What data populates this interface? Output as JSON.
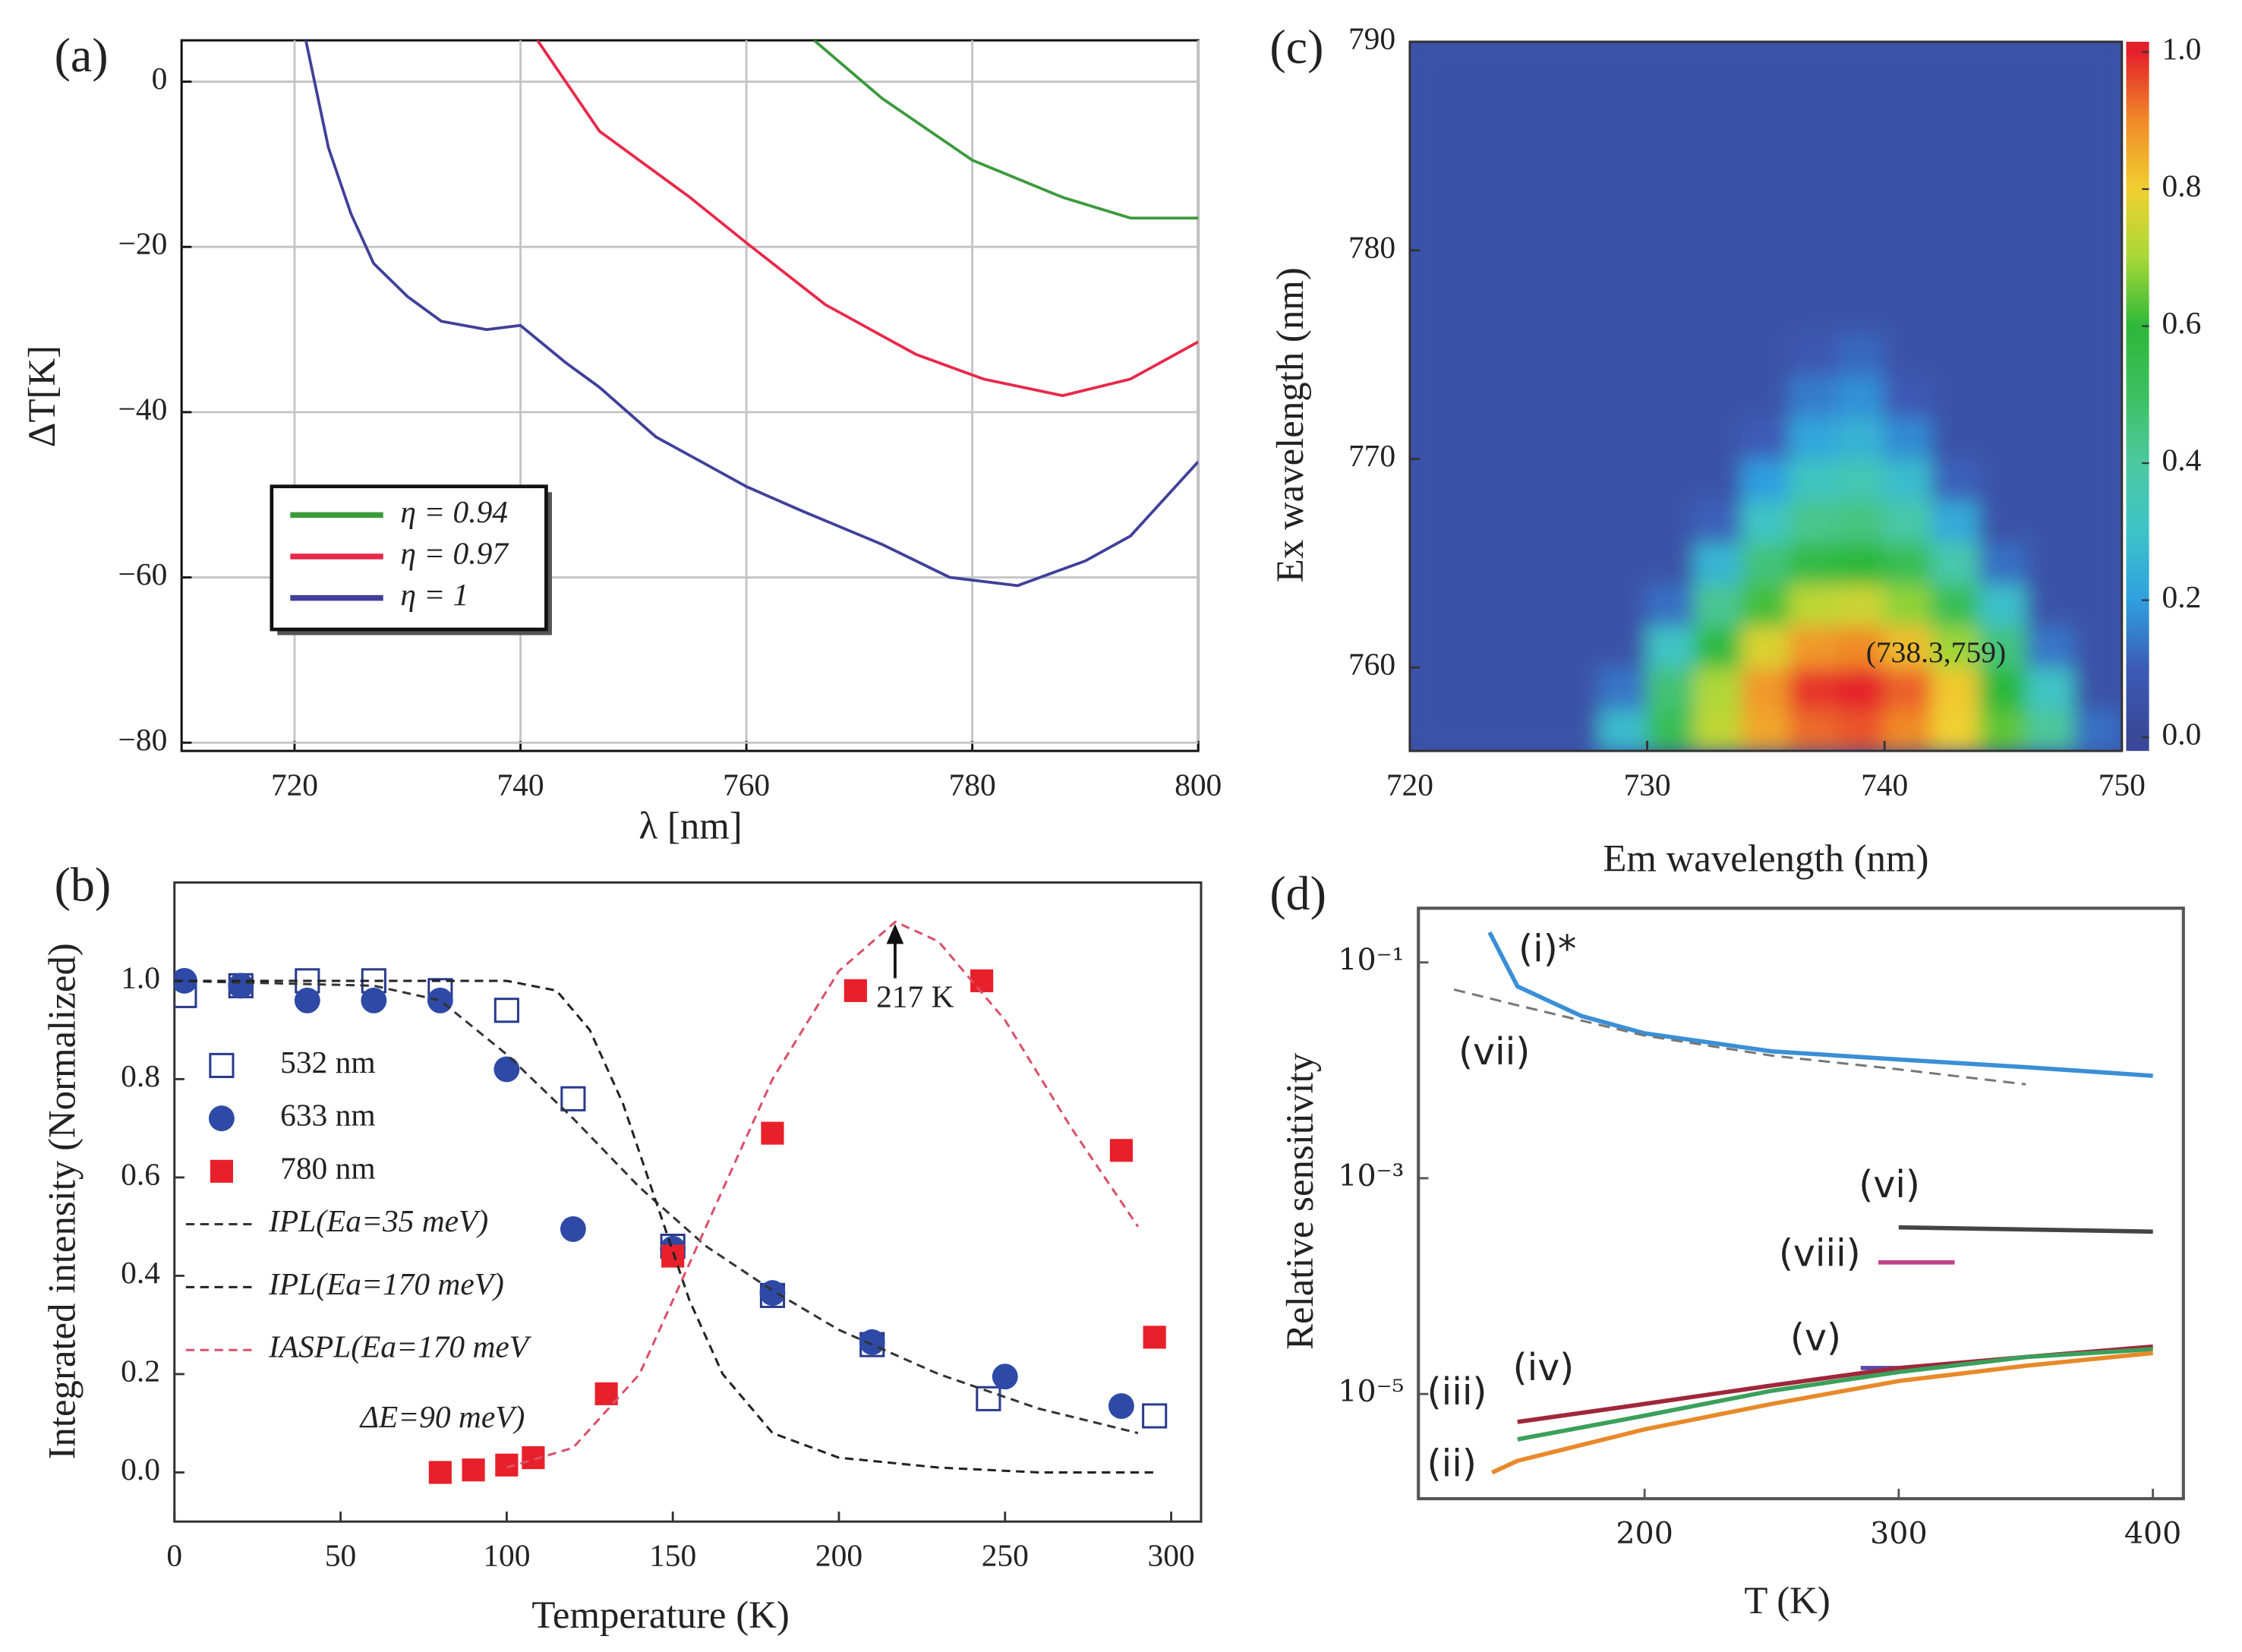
{
  "chart_data": [
    {
      "type": "line",
      "panel_label": "(a)",
      "xlabel": "λ [nm]",
      "ylabel": "ΔT[K]",
      "xlim": [
        710,
        800
      ],
      "ylim": [
        -81,
        5
      ],
      "xticks": [
        720,
        740,
        760,
        780,
        800
      ],
      "yticks": [
        {
          "value": -80,
          "label": "−80"
        },
        {
          "value": -60,
          "label": "−60"
        },
        {
          "value": -40,
          "label": "−40"
        },
        {
          "value": -20,
          "label": "−20"
        },
        0
      ],
      "grid": true,
      "legend": "left",
      "series": [
        {
          "name": "η = 0.94",
          "color": "#3c9a3c",
          "x": [
            766,
            772,
            780,
            788,
            794,
            800
          ],
          "values": [
            5,
            -2,
            -9.5,
            -14,
            -16.5,
            -16.5
          ]
        },
        {
          "name": "η = 0.97",
          "color": "#e8294a",
          "x": [
            741.5,
            747,
            755,
            760,
            767,
            775,
            781,
            788,
            794,
            800
          ],
          "values": [
            5,
            -6,
            -14,
            -19.5,
            -27,
            -33,
            -36,
            -38,
            -36,
            -31.5
          ]
        },
        {
          "name": "η = 1",
          "color": "#40409a",
          "x": [
            721,
            723,
            725,
            727,
            730,
            733,
            737,
            740,
            744,
            747,
            752,
            756,
            760,
            765,
            772,
            778,
            784,
            790,
            794,
            800
          ],
          "values": [
            5,
            -8,
            -16,
            -22,
            -26,
            -29,
            -30,
            -29.5,
            -34,
            -37,
            -43,
            -46,
            -49,
            -52,
            -56,
            -60,
            -61,
            -58,
            -55,
            -46
          ]
        }
      ]
    },
    {
      "type": "scatter",
      "panel_label": "(b)",
      "xlabel": "Temperature (K)",
      "ylabel": "Integrated intensity (Normalized)",
      "xlim": [
        0,
        309
      ],
      "ylim": [
        -0.1,
        1.2
      ],
      "xticks": [
        0,
        50,
        100,
        150,
        200,
        250,
        300
      ],
      "yticks": [
        {
          "value": 0,
          "label": "0.0"
        },
        {
          "value": 0.2,
          "label": "0.2"
        },
        {
          "value": 0.4,
          "label": "0.4"
        },
        {
          "value": 0.6,
          "label": "0.6"
        },
        {
          "value": 0.8,
          "label": "0.8"
        },
        {
          "value": 1,
          "label": "1.0"
        }
      ],
      "grid": false,
      "legend": "left",
      "annotations": [
        "217 K",
        "ΔE=90 meV)"
      ],
      "series": [
        {
          "name": "532 nm",
          "marker": "square-open",
          "color": "#2a3a8c",
          "x": [
            3,
            20,
            40,
            60,
            80,
            100,
            120,
            150,
            180,
            210,
            245,
            295
          ],
          "values": [
            0.97,
            0.99,
            1.0,
            1.0,
            0.98,
            0.94,
            0.76,
            0.46,
            0.36,
            0.26,
            0.15,
            0.115
          ]
        },
        {
          "name": "633 nm",
          "marker": "circle",
          "color": "#2e4aa6",
          "x": [
            3,
            20,
            40,
            60,
            80,
            100,
            120,
            150,
            180,
            210,
            250,
            285
          ],
          "values": [
            1.0,
            0.99,
            0.96,
            0.96,
            0.96,
            0.82,
            0.495,
            0.455,
            0.365,
            0.265,
            0.195,
            0.135
          ]
        },
        {
          "name": "780 nm",
          "marker": "square",
          "color": "#e8202a",
          "x": [
            80,
            90,
            100,
            108,
            130,
            150,
            180,
            205,
            243,
            285,
            295
          ],
          "values": [
            0.0,
            0.005,
            0.015,
            0.03,
            0.16,
            0.44,
            0.69,
            0.98,
            1.0,
            0.655,
            0.275
          ]
        },
        {
          "name": "IPL(Ea=35 meV)",
          "dash": true,
          "color": "#333333",
          "x": [
            0,
            60,
            80,
            100,
            120,
            140,
            160,
            180,
            200,
            230,
            260,
            290
          ],
          "values": [
            1.0,
            0.99,
            0.96,
            0.85,
            0.72,
            0.58,
            0.46,
            0.37,
            0.29,
            0.2,
            0.13,
            0.08
          ]
        },
        {
          "name": "IPL(Ea=170 meV)",
          "dash": true,
          "color": "#222222",
          "x": [
            0,
            100,
            115,
            125,
            135,
            145,
            155,
            165,
            180,
            200,
            230,
            260,
            295
          ],
          "values": [
            1.0,
            1.0,
            0.98,
            0.9,
            0.75,
            0.55,
            0.35,
            0.2,
            0.08,
            0.03,
            0.01,
            0.0,
            0.0
          ]
        },
        {
          "name": "IASPL(Ea=170 meV",
          "dash": true,
          "color": "#d8506a",
          "x": [
            100,
            120,
            140,
            160,
            180,
            200,
            217,
            230,
            250,
            270,
            290
          ],
          "values": [
            0.01,
            0.05,
            0.2,
            0.5,
            0.8,
            1.02,
            1.12,
            1.08,
            0.92,
            0.7,
            0.5
          ]
        }
      ]
    },
    {
      "type": "heatmap",
      "panel_label": "(c)",
      "xlabel": "Em wavelength (nm)",
      "ylabel": "Ex wavelength (nm)",
      "xlim": [
        720,
        750
      ],
      "ylim": [
        756,
        790
      ],
      "xticks": [
        720,
        730,
        740,
        750
      ],
      "yticks": [
        760,
        770,
        780,
        790
      ],
      "annotations": [
        "(738.3,759)"
      ],
      "colorbar_lim": [
        -0.02,
        1.015
      ],
      "colorbar_ticks": [
        {
          "value": 0,
          "label": "0.0"
        },
        {
          "value": 0.2,
          "label": "0.2"
        },
        {
          "value": 0.4,
          "label": "0.4"
        },
        {
          "value": 0.6,
          "label": "0.6"
        },
        {
          "value": 0.8,
          "label": "0.8"
        },
        {
          "value": 1,
          "label": "1.0"
        }
      ],
      "colorscale": [
        [
          0,
          "#3a4898"
        ],
        [
          0.1,
          "#3c5bb5"
        ],
        [
          0.2,
          "#2f9fe0"
        ],
        [
          0.3,
          "#3ec3c8"
        ],
        [
          0.4,
          "#4cc8a0"
        ],
        [
          0.5,
          "#3dc060"
        ],
        [
          0.6,
          "#2cb83a"
        ],
        [
          0.7,
          "#a8d838"
        ],
        [
          0.8,
          "#f0d030"
        ],
        [
          0.9,
          "#f08a28"
        ],
        [
          1.0,
          "#e4202a"
        ]
      ],
      "x": [
        721,
        723,
        725,
        727,
        729,
        731,
        733,
        735,
        737,
        739,
        741,
        743,
        745,
        747,
        749
      ],
      "y": [
        757,
        759,
        761,
        763,
        765,
        767,
        769,
        771,
        773,
        775,
        777,
        779,
        781,
        783,
        785,
        787,
        789
      ],
      "z": [
        [
          0.05,
          0.05,
          0.05,
          0.05,
          0.28,
          0.53,
          0.73,
          0.86,
          0.93,
          0.95,
          0.9,
          0.8,
          0.64,
          0.41,
          0.13
        ],
        [
          0.05,
          0.05,
          0.05,
          0.05,
          0.14,
          0.47,
          0.71,
          0.88,
          0.98,
          1.0,
          0.94,
          0.81,
          0.6,
          0.31,
          0.05
        ],
        [
          0.05,
          0.05,
          0.05,
          0.05,
          0.05,
          0.31,
          0.58,
          0.77,
          0.88,
          0.9,
          0.83,
          0.69,
          0.46,
          0.14,
          0.05
        ],
        [
          0.05,
          0.05,
          0.05,
          0.05,
          0.05,
          0.13,
          0.42,
          0.62,
          0.73,
          0.75,
          0.68,
          0.53,
          0.29,
          0.05,
          0.05
        ],
        [
          0.05,
          0.05,
          0.05,
          0.05,
          0.05,
          0.05,
          0.26,
          0.46,
          0.57,
          0.6,
          0.53,
          0.37,
          0.13,
          0.05,
          0.05
        ],
        [
          0.05,
          0.05,
          0.05,
          0.05,
          0.05,
          0.05,
          0.11,
          0.31,
          0.43,
          0.45,
          0.38,
          0.23,
          0.05,
          0.05,
          0.05
        ],
        [
          0.05,
          0.05,
          0.05,
          0.05,
          0.05,
          0.05,
          0.05,
          0.2,
          0.32,
          0.35,
          0.28,
          0.11,
          0.05,
          0.05,
          0.05
        ],
        [
          0.05,
          0.05,
          0.05,
          0.05,
          0.05,
          0.05,
          0.05,
          0.1,
          0.22,
          0.25,
          0.17,
          0.05,
          0.05,
          0.05,
          0.05
        ],
        [
          0.05,
          0.05,
          0.05,
          0.05,
          0.05,
          0.05,
          0.05,
          0.05,
          0.15,
          0.18,
          0.09,
          0.05,
          0.05,
          0.05,
          0.05
        ],
        [
          0.05,
          0.05,
          0.05,
          0.05,
          0.05,
          0.05,
          0.05,
          0.05,
          0.08,
          0.12,
          0.05,
          0.05,
          0.05,
          0.05,
          0.05
        ],
        [
          0.05,
          0.05,
          0.05,
          0.05,
          0.05,
          0.05,
          0.05,
          0.05,
          0.05,
          0.05,
          0.05,
          0.05,
          0.05,
          0.05,
          0.05
        ],
        [
          0.05,
          0.05,
          0.05,
          0.05,
          0.05,
          0.05,
          0.05,
          0.05,
          0.05,
          0.05,
          0.05,
          0.05,
          0.05,
          0.05,
          0.05
        ],
        [
          0.05,
          0.05,
          0.05,
          0.05,
          0.05,
          0.05,
          0.05,
          0.05,
          0.05,
          0.05,
          0.05,
          0.05,
          0.05,
          0.05,
          0.05
        ],
        [
          0.05,
          0.05,
          0.05,
          0.05,
          0.05,
          0.05,
          0.05,
          0.05,
          0.05,
          0.05,
          0.05,
          0.05,
          0.05,
          0.05,
          0.05
        ],
        [
          0.05,
          0.05,
          0.05,
          0.05,
          0.05,
          0.05,
          0.05,
          0.05,
          0.05,
          0.05,
          0.05,
          0.05,
          0.05,
          0.05,
          0.05
        ],
        [
          0.05,
          0.05,
          0.05,
          0.05,
          0.05,
          0.05,
          0.05,
          0.05,
          0.05,
          0.05,
          0.05,
          0.05,
          0.05,
          0.05,
          0.05
        ],
        [
          0.05,
          0.05,
          0.05,
          0.05,
          0.05,
          0.05,
          0.05,
          0.05,
          0.05,
          0.05,
          0.05,
          0.05,
          0.05,
          0.05,
          0.05
        ]
      ]
    },
    {
      "type": "line",
      "panel_label": "(d)",
      "xlabel": "T (K)",
      "ylabel": "Relative sensitivity",
      "log_y": true,
      "xlim": [
        111,
        412
      ],
      "ylim": [
        1.07e-06,
        0.318
      ],
      "xticks": [
        200,
        300,
        400
      ],
      "yticks": [
        {
          "value": 0.1,
          "label": "10⁻¹"
        },
        {
          "value": 0.001,
          "label": "10⁻³"
        },
        {
          "value": 1e-05,
          "label": "10⁻⁵"
        }
      ],
      "grid": false,
      "series": [
        {
          "name": "(i)*",
          "color": "#3a8fd6",
          "x": [
            139,
            150,
            175,
            200,
            250,
            300,
            350,
            400
          ],
          "values": [
            0.19,
            0.06,
            0.032,
            0.022,
            0.015,
            0.0126,
            0.0107,
            0.0089
          ]
        },
        {
          "name": "(vii)",
          "color": "#777777",
          "dash": true,
          "x": [
            125,
            150,
            200,
            250,
            300,
            350
          ],
          "values": [
            0.056,
            0.04,
            0.021,
            0.0137,
            0.0102,
            0.0074
          ]
        },
        {
          "name": "(vi)",
          "color": "#444444",
          "label_color": "#8a2035",
          "x": [
            300,
            400
          ],
          "values": [
            0.00035,
            0.00032
          ]
        },
        {
          "name": "(viii)",
          "color": "#c2408a",
          "x": [
            292,
            322
          ],
          "values": [
            0.000166,
            0.000166
          ]
        },
        {
          "name": "(v)",
          "color": "#5a4aa8",
          "x": [
            285,
            305
          ],
          "values": [
            1.74e-05,
            1.74e-05
          ]
        },
        {
          "name": "(iv)",
          "color": "#a0263a",
          "x": [
            150,
            200,
            250,
            300,
            350,
            400
          ],
          "values": [
            5.5e-06,
            8.1e-06,
            1.2e-05,
            1.74e-05,
            2.2e-05,
            2.75e-05
          ]
        },
        {
          "name": "(iii)",
          "color": "#3aa05a",
          "x": [
            150,
            200,
            250,
            300,
            350,
            400
          ],
          "values": [
            3.8e-06,
            6.3e-06,
            1.07e-05,
            1.6e-05,
            2.2e-05,
            2.6e-05
          ]
        },
        {
          "name": "(ii)",
          "color": "#e8892a",
          "x": [
            140,
            150,
            200,
            250,
            300,
            350,
            400
          ],
          "values": [
            1.87e-06,
            2.4e-06,
            4.7e-06,
            8.1e-06,
            1.32e-05,
            1.83e-05,
            2.4e-05
          ]
        }
      ]
    }
  ]
}
